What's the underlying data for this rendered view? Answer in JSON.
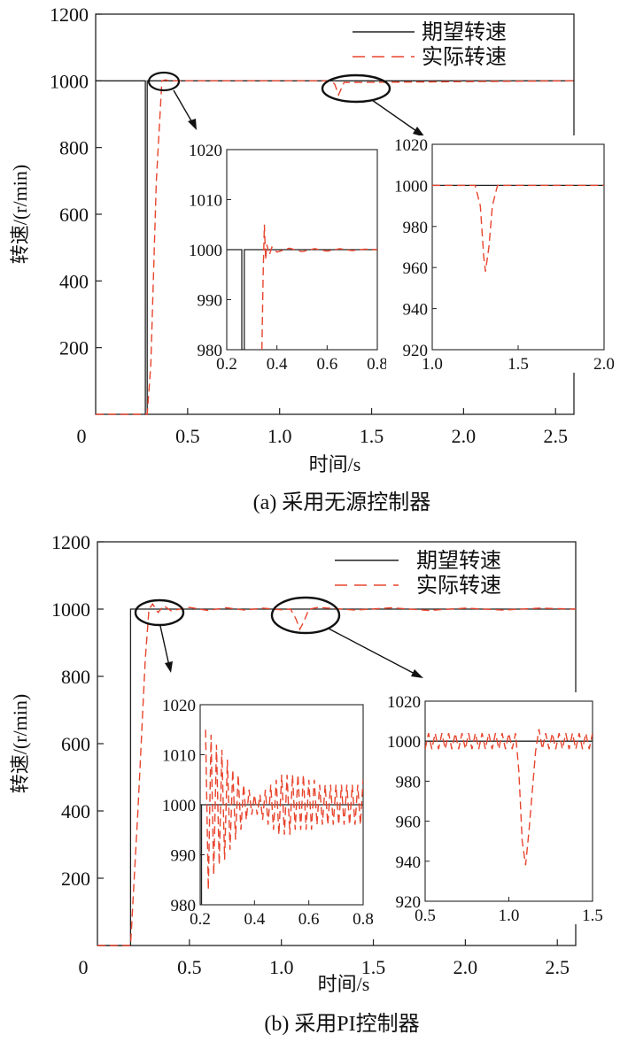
{
  "colors": {
    "desired": "#222222",
    "actual": "#e8452e",
    "axis": "#222222"
  },
  "legend": {
    "desired": "期望转速",
    "actual": "实际转速"
  },
  "chart_data": [
    {
      "id": "a",
      "type": "line",
      "caption": "(a)  采用无源控制器",
      "xlabel": "时间/s",
      "ylabel": "转速/(r/min)",
      "xlim": [
        0,
        2.6
      ],
      "ylim": [
        0,
        1200
      ],
      "xticks": [
        0,
        0.5,
        1.0,
        1.5,
        2.0,
        2.5
      ],
      "xticklabels": [
        "0",
        "0.5",
        "1.0",
        "1.5",
        "2.0",
        "2.5"
      ],
      "yticks": [
        200,
        400,
        600,
        800,
        1000,
        1200
      ],
      "yticklabels": [
        "200",
        "400",
        "600",
        "800",
        "1000",
        "1200"
      ],
      "series": [
        {
          "name": "期望转速",
          "style": "solid",
          "x": [
            0,
            0.27,
            0.27,
            0.28,
            0.28,
            0.32,
            0.32,
            2.6
          ],
          "y": [
            1000,
            1000,
            0,
            0,
            1000,
            1000,
            1000,
            1000
          ]
        },
        {
          "name": "实际转速",
          "style": "dashed",
          "x": [
            0,
            0.28,
            0.3,
            0.33,
            0.36,
            0.38,
            0.4,
            1.28,
            1.3,
            1.32,
            1.35,
            2.6
          ],
          "y": [
            0,
            0,
            150,
            700,
            1000,
            1003,
            1000,
            1000,
            990,
            958,
            995,
            1000
          ]
        }
      ],
      "insets": [
        {
          "xlim": [
            0.2,
            0.8
          ],
          "ylim": [
            980,
            1020
          ],
          "xticks": [
            0.2,
            0.4,
            0.6,
            0.8
          ],
          "xticklabels": [
            "0.2",
            "0.4",
            "0.6",
            "0.8"
          ],
          "yticks": [
            980,
            990,
            1000,
            1010,
            1020
          ],
          "yticklabels": [
            "980",
            "990",
            "1000",
            "1010",
            "1020"
          ],
          "series": [
            {
              "name": "期望转速",
              "style": "solid",
              "x": [
                0.2,
                0.26,
                0.26,
                0.27,
                0.27,
                0.31,
                0.31,
                0.8
              ],
              "y": [
                1000,
                1000,
                980,
                980,
                1000,
                1000,
                1000,
                1000
              ]
            },
            {
              "name": "实际转速",
              "style": "dashed",
              "x": [
                0.34,
                0.345,
                0.35,
                0.355,
                0.36,
                0.37,
                0.38,
                0.4,
                0.45,
                0.5,
                0.55,
                0.6,
                0.65,
                0.7,
                0.75,
                0.8
              ],
              "y": [
                980,
                995,
                1005,
                998,
                1001,
                999,
                1000.5,
                999.5,
                1000.3,
                999.6,
                1000.2,
                999.7,
                1000.2,
                999.8,
                1000.1,
                1000
              ]
            }
          ]
        },
        {
          "xlim": [
            1.0,
            2.0
          ],
          "ylim": [
            920,
            1020
          ],
          "xticks": [
            1.0,
            1.5,
            2.0
          ],
          "xticklabels": [
            "1.0",
            "1.5",
            "2.0"
          ],
          "yticks": [
            920,
            940,
            960,
            980,
            1000,
            1020
          ],
          "yticklabels": [
            "920",
            "940",
            "960",
            "980",
            "1000",
            "1020"
          ],
          "series": [
            {
              "name": "期望转速",
              "style": "solid",
              "x": [
                1.0,
                2.0
              ],
              "y": [
                1000,
                1000
              ]
            },
            {
              "name": "实际转速",
              "style": "dashed",
              "x": [
                1.0,
                1.25,
                1.28,
                1.3,
                1.31,
                1.33,
                1.35,
                1.38,
                2.0
              ],
              "y": [
                1000,
                1000,
                990,
                965,
                958,
                970,
                990,
                1000,
                1000
              ]
            }
          ]
        }
      ]
    },
    {
      "id": "b",
      "type": "line",
      "caption": "(b)  采用PI控制器",
      "xlabel": "时间/s",
      "ylabel": "转速/(r/min)",
      "xlim": [
        0,
        2.6
      ],
      "ylim": [
        0,
        1200
      ],
      "xticks": [
        0,
        0.5,
        1.0,
        1.5,
        2.0,
        2.5
      ],
      "xticklabels": [
        "0",
        "0.5",
        "1.0",
        "1.5",
        "2.0",
        "2.5"
      ],
      "yticks": [
        200,
        400,
        600,
        800,
        1000,
        1200
      ],
      "yticklabels": [
        "200",
        "400",
        "600",
        "800",
        "1000",
        "1200"
      ],
      "series": [
        {
          "name": "期望转速",
          "style": "solid",
          "x": [
            0,
            0.18,
            0.18,
            2.6
          ],
          "y": [
            0,
            0,
            1000,
            1000
          ]
        },
        {
          "name": "实际转速",
          "style": "dashed",
          "x": [
            0,
            0.18,
            0.22,
            0.26,
            0.28,
            0.3,
            0.33,
            0.36,
            0.4,
            0.5,
            0.6,
            0.7,
            0.8,
            0.9,
            1.0,
            1.05,
            1.08,
            1.1,
            1.12,
            1.15,
            1.2,
            1.4,
            1.6,
            1.8,
            2.0,
            2.2,
            2.4,
            2.6
          ],
          "y": [
            0,
            0,
            400,
            850,
            1000,
            1015,
            990,
            1010,
            995,
            1005,
            996,
            1004,
            997,
            1003,
            998,
            1000,
            970,
            940,
            960,
            1000,
            1005,
            997,
            1004,
            996,
            1003,
            997,
            1003,
            1000
          ]
        }
      ],
      "insets": [
        {
          "xlim": [
            0.2,
            0.8
          ],
          "ylim": [
            980,
            1020
          ],
          "xticks": [
            0.2,
            0.4,
            0.6,
            0.8
          ],
          "xticklabels": [
            "0.2",
            "0.4",
            "0.6",
            "0.8"
          ],
          "yticks": [
            980,
            990,
            1000,
            1010,
            1020
          ],
          "yticklabels": [
            "980",
            "990",
            "1000",
            "1010",
            "1020"
          ],
          "series": [
            {
              "name": "期望转速",
              "style": "solid",
              "x": [
                0.2,
                0.205,
                0.205,
                0.8
              ],
              "y": [
                980,
                980,
                1000,
                1000
              ]
            },
            {
              "name": "实际转速",
              "style": "dashed",
              "x": [
                0.22,
                0.23,
                0.24,
                0.25,
                0.26,
                0.27,
                0.28,
                0.29,
                0.3,
                0.31,
                0.32,
                0.33,
                0.34,
                0.35,
                0.36,
                0.37,
                0.38,
                0.39,
                0.4,
                0.41,
                0.42,
                0.43,
                0.44,
                0.45,
                0.46,
                0.47,
                0.48,
                0.49,
                0.5,
                0.51,
                0.52,
                0.53,
                0.54,
                0.55,
                0.56,
                0.57,
                0.58,
                0.59,
                0.6,
                0.61,
                0.62,
                0.63,
                0.64,
                0.65,
                0.66,
                0.67,
                0.68,
                0.69,
                0.7,
                0.71,
                0.72,
                0.73,
                0.74,
                0.75,
                0.76,
                0.77,
                0.78,
                0.79,
                0.8
              ],
              "y": [
                1015,
                983,
                1014,
                986,
                1012,
                988,
                1011,
                989,
                1009,
                991,
                1007,
                993,
                1006,
                995,
                1004,
                997,
                1003,
                998,
                1002,
                998,
                1002,
                997,
                1003,
                996,
                1004,
                995,
                1005,
                994,
                1006,
                994,
                1006,
                994,
                1006,
                995,
                1006,
                995,
                1006,
                995,
                1005,
                995,
                1005,
                996,
                1004,
                996,
                1004,
                996,
                1004,
                996,
                1004,
                996,
                1004,
                996,
                1004,
                996,
                1004,
                996,
                1004,
                996,
                1005
              ]
            }
          ]
        },
        {
          "xlim": [
            0.5,
            1.5
          ],
          "ylim": [
            920,
            1020
          ],
          "xticks": [
            0.5,
            1.0,
            1.5
          ],
          "xticklabels": [
            "0.5",
            "1.0",
            "1.5"
          ],
          "yticks": [
            920,
            940,
            960,
            980,
            1000,
            1020
          ],
          "yticklabels": [
            "920",
            "940",
            "960",
            "980",
            "1000",
            "1020"
          ],
          "series": [
            {
              "name": "期望转速",
              "style": "solid",
              "x": [
                0.5,
                1.5
              ],
              "y": [
                1000,
                1000
              ]
            },
            {
              "name": "实际转速",
              "style": "dashed",
              "x": [
                0.5,
                0.52,
                0.54,
                0.56,
                0.58,
                0.6,
                0.62,
                0.64,
                0.66,
                0.68,
                0.7,
                0.72,
                0.74,
                0.76,
                0.78,
                0.8,
                0.82,
                0.84,
                0.86,
                0.88,
                0.9,
                0.92,
                0.94,
                0.96,
                0.98,
                1.0,
                1.02,
                1.04,
                1.06,
                1.08,
                1.1,
                1.12,
                1.14,
                1.16,
                1.18,
                1.2,
                1.22,
                1.24,
                1.26,
                1.28,
                1.3,
                1.32,
                1.34,
                1.36,
                1.38,
                1.4,
                1.42,
                1.44,
                1.46,
                1.48,
                1.5
              ],
              "y": [
                996,
                1004,
                996,
                1004,
                996,
                1004,
                996,
                1004,
                996,
                1004,
                996,
                1004,
                996,
                1004,
                996,
                1004,
                996,
                1004,
                996,
                1004,
                996,
                1004,
                996,
                1004,
                996,
                1004,
                996,
                1004,
                985,
                950,
                938,
                955,
                975,
                995,
                1006,
                996,
                1004,
                996,
                1004,
                996,
                1004,
                996,
                1004,
                996,
                1004,
                996,
                1004,
                996,
                1004,
                996,
                1004
              ]
            }
          ]
        }
      ]
    }
  ]
}
